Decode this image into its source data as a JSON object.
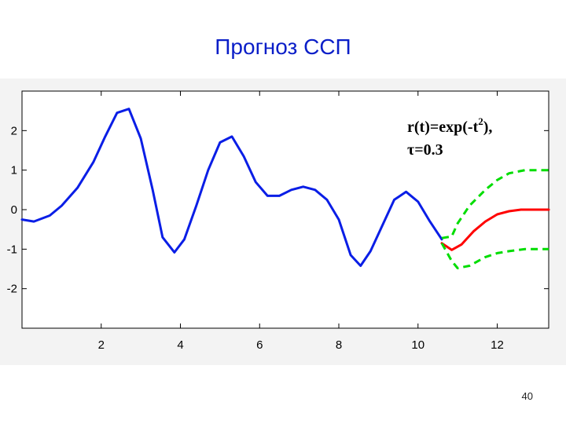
{
  "slide": {
    "title": "Прогноз ССП",
    "page_number": "40"
  },
  "colors": {
    "title": "#0a1ec8",
    "observed": "#0a1ee6",
    "forecast": "#ff0000",
    "bounds": "#00dd00"
  },
  "chart_data": {
    "type": "line",
    "title": "",
    "xlabel": "",
    "ylabel": "",
    "xlim": [
      0,
      13.3
    ],
    "ylim": [
      -3,
      3
    ],
    "xticks": [
      2,
      4,
      6,
      8,
      10,
      12
    ],
    "yticks": [
      2,
      1,
      0,
      -1,
      -2
    ],
    "grid": false,
    "annotation": {
      "line1_prefix": "r(t)=exp(-t",
      "line1_sup": "2",
      "line1_suffix": "),",
      "line2": "τ=0.3"
    },
    "series": [
      {
        "role": "observed",
        "color": "#0a1ee6",
        "style": "solid",
        "x": [
          0,
          0.3,
          0.7,
          1.0,
          1.4,
          1.8,
          2.1,
          2.4,
          2.7,
          3.0,
          3.3,
          3.55,
          3.85,
          4.1,
          4.4,
          4.7,
          5.0,
          5.3,
          5.6,
          5.9,
          6.2,
          6.5,
          6.8,
          7.1,
          7.4,
          7.7,
          8.0,
          8.3,
          8.55,
          8.8,
          9.1,
          9.4,
          9.7,
          10.0,
          10.3,
          10.6
        ],
        "y": [
          -0.25,
          -0.3,
          -0.15,
          0.1,
          0.55,
          1.2,
          1.85,
          2.45,
          2.55,
          1.8,
          0.5,
          -0.7,
          -1.08,
          -0.75,
          0.1,
          1.0,
          1.7,
          1.85,
          1.35,
          0.7,
          0.35,
          0.35,
          0.5,
          0.58,
          0.5,
          0.25,
          -0.25,
          -1.15,
          -1.42,
          -1.05,
          -0.4,
          0.25,
          0.45,
          0.2,
          -0.3,
          -0.75
        ]
      },
      {
        "role": "forecast",
        "color": "#ff0000",
        "style": "solid",
        "x": [
          10.6,
          10.85,
          11.1,
          11.4,
          11.7,
          12.0,
          12.3,
          12.6,
          13.0,
          13.3
        ],
        "y": [
          -0.85,
          -1.02,
          -0.88,
          -0.55,
          -0.3,
          -0.12,
          -0.04,
          0.0,
          0.0,
          0.0
        ]
      },
      {
        "role": "upper-bound",
        "color": "#00dd00",
        "style": "dashed",
        "x": [
          10.6,
          10.85,
          11.0,
          11.3,
          11.7,
          12.0,
          12.3,
          12.7,
          13.0,
          13.3
        ],
        "y": [
          -0.72,
          -0.68,
          -0.35,
          0.1,
          0.5,
          0.75,
          0.92,
          1.0,
          1.0,
          1.0
        ]
      },
      {
        "role": "lower-bound",
        "color": "#00dd00",
        "style": "dashed",
        "x": [
          10.6,
          10.85,
          11.0,
          11.3,
          11.7,
          12.0,
          12.3,
          12.7,
          13.0,
          13.3
        ],
        "y": [
          -0.85,
          -1.3,
          -1.48,
          -1.42,
          -1.2,
          -1.1,
          -1.05,
          -1.0,
          -1.0,
          -1.0
        ]
      }
    ]
  }
}
